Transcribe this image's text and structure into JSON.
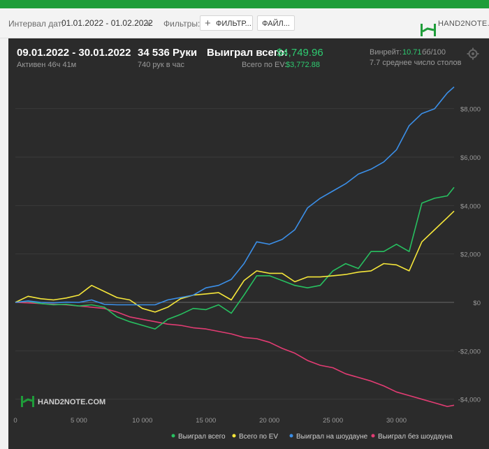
{
  "toolbar": {
    "date_label": "Интервал дат:",
    "date_value": "01.01.2022 - 01.02.2022",
    "filters_label": "Фильтры:",
    "filter_button": "ФИЛЬТР...",
    "file_button": "ФАЙЛ...",
    "logo_text": "HAND2NOTE.COM"
  },
  "stats": {
    "range": "09.01.2022 - 30.01.2022",
    "active": "Активен 46ч 41м",
    "hands": "34 536 Руки",
    "hands_per_hour": "740 рук в час",
    "won_label": "Выиграл всего:",
    "won_value": "$4,749.96",
    "ev_label": "Всего по EV:",
    "ev_value": "$3,772.88",
    "winrate_label": "Винрейт:",
    "winrate_value": "10.71",
    "winrate_unit": "бб/100",
    "tables": "7.7 среднее число столов"
  },
  "watermark": "HAND2NOTE.COM",
  "colors": {
    "won": "#27c060",
    "ev": "#f5e63a",
    "showdown": "#3b8fe8",
    "nonshowdown": "#e23c73",
    "background": "#2b2b2b",
    "accent": "#2ecc71"
  },
  "chart_data": {
    "type": "line",
    "xlim": [
      0,
      34536
    ],
    "ylim": [
      -4500,
      9000
    ],
    "x_ticks": [
      0,
      5000,
      10000,
      15000,
      20000,
      25000,
      30000
    ],
    "x_tick_labels": [
      "0",
      "5 000",
      "10 000",
      "15 000",
      "20 000",
      "25 000",
      "30 000"
    ],
    "y_ticks": [
      8000,
      6000,
      4000,
      2000,
      0,
      -2000,
      -4000
    ],
    "y_tick_labels": [
      "$8,000",
      "$6,000",
      "$4,000",
      "$2,000",
      "$0",
      "-$2,000",
      "-$4,000"
    ],
    "grid": true,
    "legend_position": "bottom-right",
    "series": [
      {
        "name": "Выиграл всего",
        "key": "won",
        "x": [
          0,
          1000,
          2000,
          3000,
          4000,
          5000,
          6000,
          7000,
          8000,
          9000,
          10000,
          11000,
          12000,
          13000,
          14000,
          15000,
          16000,
          17000,
          18000,
          19000,
          20000,
          21000,
          22000,
          23000,
          24000,
          25000,
          26000,
          27000,
          28000,
          29000,
          30000,
          31000,
          32000,
          33000,
          34000,
          34536
        ],
        "values": [
          0,
          50,
          -50,
          -100,
          -80,
          -150,
          -100,
          -200,
          -600,
          -800,
          -950,
          -1100,
          -700,
          -500,
          -250,
          -300,
          -100,
          -450,
          300,
          1100,
          1100,
          900,
          700,
          600,
          700,
          1300,
          1600,
          1400,
          2100,
          2100,
          2400,
          2100,
          4100,
          4300,
          4400,
          4750
        ]
      },
      {
        "name": "Всего по EV",
        "key": "ev",
        "x": [
          0,
          1000,
          2000,
          3000,
          4000,
          5000,
          6000,
          7000,
          8000,
          9000,
          10000,
          11000,
          12000,
          13000,
          14000,
          15000,
          16000,
          17000,
          18000,
          19000,
          20000,
          21000,
          22000,
          23000,
          24000,
          25000,
          26000,
          27000,
          28000,
          29000,
          30000,
          31000,
          32000,
          33000,
          34000,
          34536
        ],
        "values": [
          0,
          250,
          150,
          100,
          180,
          300,
          700,
          450,
          200,
          100,
          -250,
          -400,
          -200,
          150,
          300,
          350,
          400,
          100,
          900,
          1300,
          1200,
          1200,
          850,
          1050,
          1050,
          1100,
          1150,
          1250,
          1300,
          1600,
          1550,
          1300,
          2500,
          3000,
          3500,
          3770
        ]
      },
      {
        "name": "Выиграл на шоудауне",
        "key": "showdown",
        "x": [
          0,
          1000,
          2000,
          3000,
          4000,
          5000,
          6000,
          7000,
          8000,
          9000,
          10000,
          11000,
          12000,
          13000,
          14000,
          15000,
          16000,
          17000,
          18000,
          19000,
          20000,
          21000,
          22000,
          23000,
          24000,
          25000,
          26000,
          27000,
          28000,
          29000,
          30000,
          31000,
          32000,
          33000,
          34000,
          34536
        ],
        "values": [
          0,
          60,
          0,
          -20,
          10,
          0,
          100,
          -80,
          -100,
          -100,
          -100,
          -100,
          100,
          200,
          300,
          600,
          700,
          950,
          1600,
          2500,
          2400,
          2600,
          3000,
          3900,
          4300,
          4600,
          4900,
          5300,
          5500,
          5800,
          6300,
          7300,
          7800,
          8000,
          8650,
          8900
        ]
      },
      {
        "name": "Выиграл без шоудауна",
        "key": "nonshowdown",
        "x": [
          0,
          1000,
          2000,
          3000,
          4000,
          5000,
          6000,
          7000,
          8000,
          9000,
          10000,
          11000,
          12000,
          13000,
          14000,
          15000,
          16000,
          17000,
          18000,
          19000,
          20000,
          21000,
          22000,
          23000,
          24000,
          25000,
          26000,
          27000,
          28000,
          29000,
          30000,
          31000,
          32000,
          33000,
          34000,
          34536
        ],
        "values": [
          0,
          -20,
          -50,
          -80,
          -100,
          -150,
          -200,
          -250,
          -400,
          -600,
          -700,
          -800,
          -900,
          -950,
          -1050,
          -1100,
          -1200,
          -1300,
          -1450,
          -1500,
          -1650,
          -1900,
          -2100,
          -2400,
          -2600,
          -2700,
          -2950,
          -3100,
          -3250,
          -3450,
          -3700,
          -3850,
          -4000,
          -4150,
          -4300,
          -4250
        ]
      }
    ]
  }
}
